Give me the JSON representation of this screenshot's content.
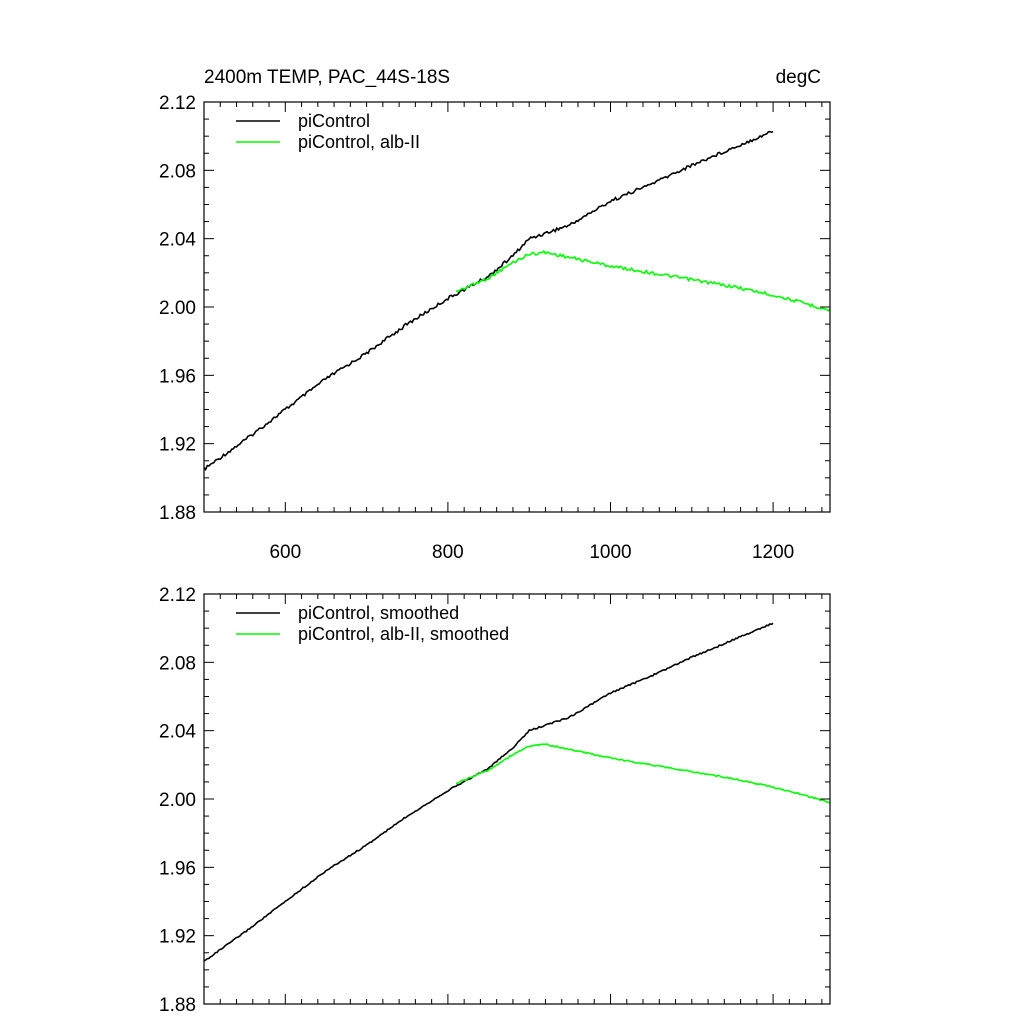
{
  "chart_data": [
    {
      "type": "line",
      "title": "2400m TEMP, PAC_44S-18S",
      "units": "degC",
      "xlim": [
        500,
        1270
      ],
      "ylim": [
        1.88,
        2.12
      ],
      "x_ticks": [
        600,
        800,
        1000,
        1200
      ],
      "x_tick_labels": [
        "600",
        "800",
        "1000",
        "1200"
      ],
      "y_ticks": [
        1.88,
        1.92,
        1.96,
        2.0,
        2.04,
        2.08,
        2.12
      ],
      "y_tick_labels": [
        "1.88",
        "1.92",
        "1.96",
        "2.00",
        "2.04",
        "2.08",
        "2.12"
      ],
      "grid": false,
      "legend_position": "top-left",
      "series": [
        {
          "name": "piControl",
          "color": "#000000",
          "x": [
            500,
            550,
            600,
            650,
            700,
            750,
            800,
            850,
            880,
            900,
            950,
            1000,
            1050,
            1100,
            1150,
            1200
          ],
          "values": [
            1.905,
            1.922,
            1.94,
            1.958,
            1.973,
            1.99,
            2.005,
            2.018,
            2.03,
            2.04,
            2.048,
            2.062,
            2.072,
            2.083,
            2.093,
            2.103
          ]
        },
        {
          "name": "piControl, alb-II",
          "color": "#00ff00",
          "x": [
            810,
            850,
            880,
            900,
            920,
            950,
            1000,
            1050,
            1100,
            1150,
            1200,
            1240,
            1270
          ],
          "values": [
            2.009,
            2.017,
            2.026,
            2.031,
            2.032,
            2.029,
            2.024,
            2.02,
            2.016,
            2.012,
            2.007,
            2.002,
            1.998
          ]
        }
      ]
    },
    {
      "type": "line",
      "xlim": [
        500,
        1270
      ],
      "ylim": [
        1.88,
        2.12
      ],
      "x_ticks": [
        600,
        800,
        1000,
        1200
      ],
      "y_ticks": [
        1.88,
        1.92,
        1.96,
        2.0,
        2.04,
        2.08,
        2.12
      ],
      "y_tick_labels": [
        "1.88",
        "1.92",
        "1.96",
        "2.00",
        "2.04",
        "2.08",
        "2.12"
      ],
      "grid": false,
      "legend_position": "top-left",
      "series": [
        {
          "name": "piControl, smoothed",
          "color": "#000000",
          "x": [
            500,
            550,
            600,
            650,
            700,
            750,
            800,
            850,
            880,
            900,
            950,
            1000,
            1050,
            1100,
            1150,
            1200
          ],
          "values": [
            1.905,
            1.922,
            1.94,
            1.958,
            1.973,
            1.99,
            2.005,
            2.018,
            2.03,
            2.04,
            2.048,
            2.062,
            2.072,
            2.083,
            2.093,
            2.103
          ]
        },
        {
          "name": "piControl, alb-II, smoothed",
          "color": "#00ff00",
          "x": [
            810,
            850,
            880,
            900,
            920,
            950,
            1000,
            1050,
            1100,
            1150,
            1200,
            1240,
            1270
          ],
          "values": [
            2.009,
            2.017,
            2.026,
            2.031,
            2.032,
            2.029,
            2.024,
            2.02,
            2.016,
            2.012,
            2.007,
            2.002,
            1.998
          ]
        }
      ]
    }
  ]
}
